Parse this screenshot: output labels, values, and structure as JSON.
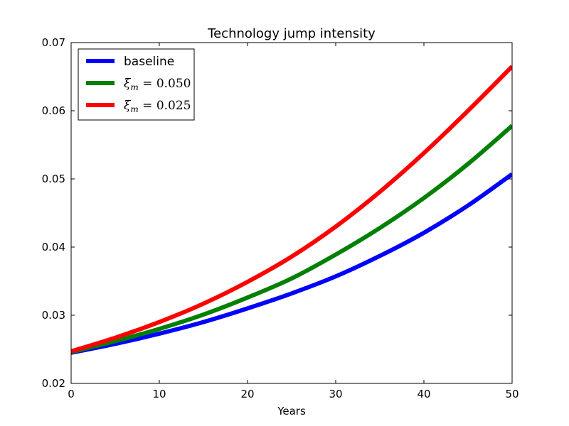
{
  "chart_data": {
    "type": "line",
    "title": "Technology jump intensity",
    "xlabel": "Years",
    "ylabel": "",
    "xlim": [
      0,
      50
    ],
    "ylim": [
      0.02,
      0.07
    ],
    "xticks": [
      "0",
      "10",
      "20",
      "30",
      "40",
      "50"
    ],
    "yticks": [
      "0.02",
      "0.03",
      "0.04",
      "0.05",
      "0.06",
      "0.07"
    ],
    "grid": false,
    "legend_position": "top-left",
    "x": [
      0,
      5,
      10,
      15,
      20,
      25,
      30,
      35,
      40,
      45,
      50
    ],
    "series": [
      {
        "name": "baseline",
        "color": "#0000ff",
        "values": [
          0.0245,
          0.0258,
          0.0273,
          0.029,
          0.031,
          0.0332,
          0.0357,
          0.0387,
          0.0421,
          0.0461,
          0.0507
        ]
      },
      {
        "name": "ξm = 0.050",
        "label_parts": {
          "symbol": "ξ",
          "sub": "m",
          "rest": " = 0.050"
        },
        "color": "#008000",
        "values": [
          0.0246,
          0.0262,
          0.028,
          0.0301,
          0.0326,
          0.0354,
          0.0389,
          0.0428,
          0.0472,
          0.0522,
          0.0578
        ]
      },
      {
        "name": "ξm = 0.025",
        "label_parts": {
          "symbol": "ξ",
          "sub": "m",
          "rest": " = 0.025"
        },
        "color": "#ff0000",
        "values": [
          0.0247,
          0.0267,
          0.029,
          0.0317,
          0.0349,
          0.0386,
          0.043,
          0.0481,
          0.0538,
          0.06,
          0.0665
        ]
      }
    ]
  }
}
